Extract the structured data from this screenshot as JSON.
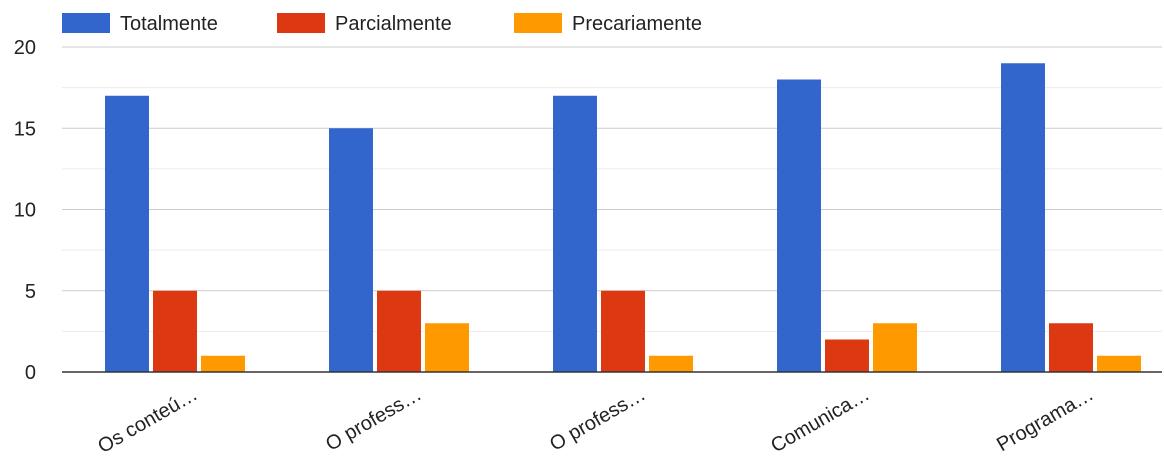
{
  "chart_data": {
    "type": "bar",
    "categories": [
      "Os conteú…",
      "O profess…",
      "O profess…",
      "Comunica…",
      "Programa…"
    ],
    "series": [
      {
        "name": "Totalmente",
        "color": "#3366cc",
        "values": [
          17,
          15,
          17,
          18,
          19
        ]
      },
      {
        "name": "Parcialmente",
        "color": "#dc3912",
        "values": [
          5,
          5,
          5,
          2,
          3
        ]
      },
      {
        "name": "Precariamente",
        "color": "#ff9900",
        "values": [
          1,
          3,
          1,
          3,
          1
        ]
      }
    ],
    "ylim": [
      0,
      20
    ],
    "yticks": [
      0,
      5,
      10,
      15,
      20
    ],
    "grid": true,
    "legend_position": "top-left"
  }
}
